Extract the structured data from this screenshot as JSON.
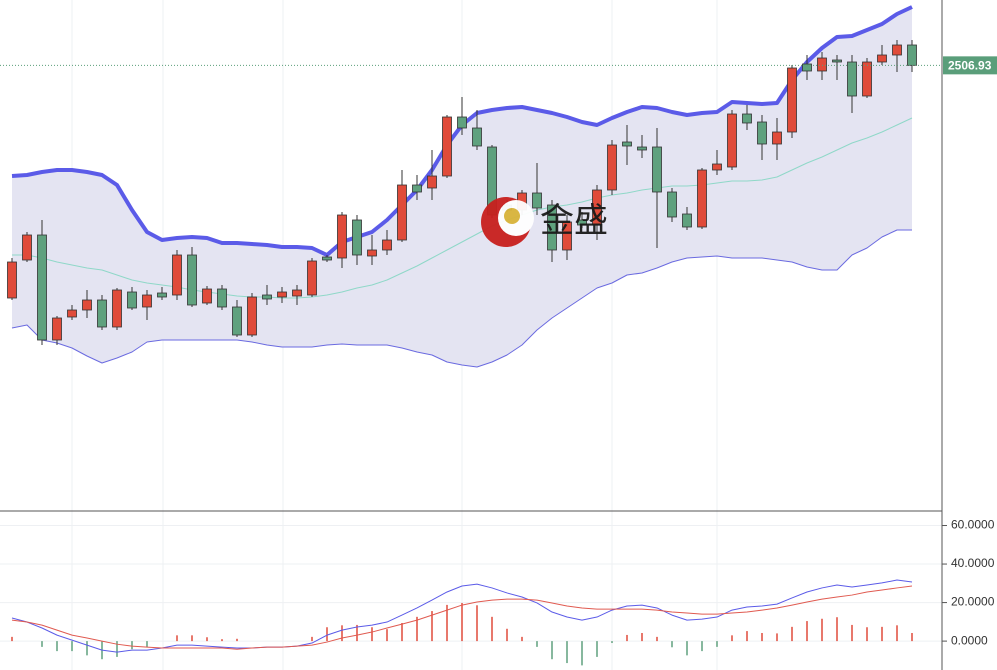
{
  "chart_data": [
    {
      "type": "candlestick",
      "watermark": "金盛",
      "current_price": 2506.93,
      "current_price_color": "#5a9e7a",
      "ylim": [
        2418,
        2520
      ],
      "up_color": "#e04b3a",
      "down_color": "#5fa17e",
      "open": [
        2460.4,
        2468,
        2473,
        2452,
        2456.6,
        2458,
        2460,
        2454.6,
        2461.6,
        2458.6,
        2461.4,
        2461,
        2469,
        2459.4,
        2462.2,
        2458.6,
        2453,
        2461,
        2460.6,
        2460.8,
        2461,
        2468.6,
        2468.4,
        2476,
        2468.8,
        2470,
        2472,
        2483,
        2482.4,
        2484.8,
        2496.6,
        2494.4,
        2490.6,
        2479,
        2478,
        2481.4,
        2479,
        2470,
        2476,
        2475,
        2482,
        2491.6,
        2490.6,
        2490.6,
        2481.6,
        2477.2,
        2474.6,
        2486,
        2486.6,
        2497.2,
        2495.6,
        2491.2,
        2493.6,
        2507.2,
        2505.8,
        2508,
        2507.6,
        2500.8,
        2507.6,
        2509,
        2511
      ],
      "high": [
        2468.4,
        2473.6,
        2476,
        2456.8,
        2459,
        2462,
        2461,
        2462.4,
        2462.6,
        2462,
        2462.6,
        2470,
        2470.6,
        2462.8,
        2463,
        2460,
        2461.4,
        2463,
        2462.6,
        2463,
        2468.4,
        2469,
        2477.6,
        2477,
        2473,
        2474,
        2486,
        2485,
        2490,
        2497,
        2500.6,
        2498,
        2491,
        2480,
        2482,
        2487.4,
        2480,
        2477,
        2477.6,
        2483,
        2492,
        2495,
        2493,
        2494.4,
        2482.4,
        2478.6,
        2486.4,
        2490,
        2498,
        2499,
        2497,
        2496.4,
        2507,
        2509,
        2509.6,
        2509,
        2509,
        2508.4,
        2511,
        2512,
        2512
      ],
      "low": [
        2460,
        2467.6,
        2451,
        2451,
        2456,
        2456.4,
        2454,
        2454,
        2458,
        2456,
        2460,
        2460,
        2458.6,
        2459,
        2458,
        2452.6,
        2452.6,
        2459,
        2459.4,
        2459,
        2460.6,
        2467.6,
        2466.4,
        2467,
        2467,
        2469,
        2471.6,
        2480,
        2480,
        2484.4,
        2493,
        2490,
        2476.4,
        2477.6,
        2477,
        2477,
        2467.6,
        2468,
        2474.4,
        2472,
        2481,
        2487,
        2488.4,
        2470.4,
        2475.6,
        2474,
        2474.2,
        2485,
        2486,
        2494,
        2488,
        2488,
        2492.4,
        2504,
        2504,
        2504,
        2497.4,
        2500.4,
        2507,
        2505.6,
        2505.6
      ],
      "close": [
        2467.6,
        2473,
        2452,
        2456.4,
        2458,
        2460,
        2454.6,
        2462,
        2458.4,
        2461,
        2460.6,
        2469,
        2459,
        2462.2,
        2458.6,
        2453,
        2460.6,
        2460.2,
        2461.6,
        2462,
        2467.8,
        2468,
        2477,
        2469,
        2470,
        2472,
        2483,
        2481.6,
        2484.8,
        2496.6,
        2494.4,
        2490.8,
        2477,
        2478,
        2481.4,
        2478.4,
        2470,
        2475.6,
        2475,
        2482,
        2491,
        2490.8,
        2490,
        2481.6,
        2476.6,
        2474.6,
        2486,
        2487.2,
        2497.2,
        2495.4,
        2491.2,
        2493.6,
        2506.4,
        2505.8,
        2508.4,
        2507.6,
        2500.8,
        2507.6,
        2509,
        2511,
        2506.93
      ],
      "band_fill": "#e4e4f2",
      "series": [
        {
          "color": "#5b5be8",
          "width": 4,
          "values": [
            2484.8,
            2485,
            2485.6,
            2486,
            2486,
            2485.6,
            2485,
            2483,
            2478,
            2473.6,
            2472,
            2472.4,
            2472.6,
            2472.4,
            2471.4,
            2471.4,
            2471.2,
            2471,
            2470.6,
            2470.6,
            2470.4,
            2469,
            2471.6,
            2472.6,
            2473.6,
            2476,
            2479,
            2482,
            2486,
            2491,
            2495,
            2497.4,
            2498,
            2498.4,
            2498.6,
            2498,
            2497.4,
            2496.6,
            2495.6,
            2495,
            2496.4,
            2497.6,
            2498.6,
            2498.4,
            2497.6,
            2497,
            2497.4,
            2497.6,
            2499.6,
            2499.4,
            2499.2,
            2499.4,
            2504,
            2507.6,
            2510.4,
            2512.6,
            2512.8,
            2514,
            2515.2,
            2517.2,
            2518.6
          ]
        },
        {
          "color": "#8fd8c8",
          "width": 1,
          "values": [
            2469,
            2469,
            2468.4,
            2467.6,
            2467,
            2466.4,
            2466,
            2465,
            2464,
            2463.4,
            2463,
            2462.6,
            2462,
            2461.6,
            2461.2,
            2460.8,
            2460.6,
            2460.6,
            2460.4,
            2460.4,
            2460.6,
            2461,
            2461.6,
            2462.4,
            2463,
            2464,
            2465.4,
            2466.8,
            2468.4,
            2470,
            2471.6,
            2473.2,
            2474.8,
            2476,
            2477,
            2478,
            2478.6,
            2479,
            2479.6,
            2480.4,
            2481,
            2481.4,
            2482,
            2482.4,
            2482.8,
            2482.8,
            2483,
            2483.4,
            2483.8,
            2483.8,
            2484,
            2484.6,
            2486,
            2487.4,
            2488.6,
            2490,
            2491.4,
            2492.4,
            2493.6,
            2495,
            2496.4
          ]
        },
        {
          "color": "#6a6ae0",
          "width": 1,
          "values": [
            2454.4,
            2455,
            2452,
            2451.4,
            2450.4,
            2448.8,
            2447.4,
            2448.4,
            2449.6,
            2451.6,
            2452,
            2452,
            2452,
            2452,
            2452,
            2452,
            2451.6,
            2451,
            2450.6,
            2450.6,
            2450.6,
            2451,
            2451.2,
            2451,
            2451,
            2451,
            2450.4,
            2449.6,
            2449,
            2447.6,
            2447,
            2446.6,
            2447.6,
            2449,
            2451,
            2454,
            2456.4,
            2458.4,
            2460.4,
            2462.4,
            2463.4,
            2465,
            2465.4,
            2466.4,
            2467.6,
            2468.4,
            2468.6,
            2468.8,
            2468.4,
            2468.4,
            2468.4,
            2468,
            2467.6,
            2466.6,
            2466,
            2466,
            2469,
            2470.4,
            2472.6,
            2474,
            2474
          ]
        }
      ]
    },
    {
      "type": "macd",
      "ylim": [
        -15,
        66.5
      ],
      "yticks": [
        {
          "value": 60,
          "label": "60.0000"
        },
        {
          "value": 40,
          "label": "40.0000"
        },
        {
          "value": 20,
          "label": "20.0000"
        },
        {
          "value": 0,
          "label": "0.0000"
        }
      ],
      "grid": true,
      "up_color": "#e04b3a",
      "down_color": "#5fa17e",
      "histogram": [
        2.2,
        0,
        -3,
        -5.2,
        -5.2,
        -7.4,
        -9.4,
        -8.2,
        -4.2,
        -3.2,
        0,
        3,
        3,
        2,
        1,
        1.2,
        0,
        0,
        0,
        0,
        2.2,
        7.2,
        8.2,
        8.4,
        7.2,
        6.2,
        9.4,
        12.6,
        15.6,
        18.8,
        19.8,
        18.6,
        12.6,
        6.4,
        2.2,
        -3,
        -9.4,
        -11.4,
        -12.6,
        -8.2,
        -1,
        3.2,
        4.2,
        2.2,
        -3.2,
        -7.4,
        -5.2,
        -3,
        3,
        5.2,
        4.2,
        4,
        7.4,
        10.4,
        11.6,
        12.4,
        8.4,
        7.2,
        7.4,
        8.2,
        4.2
      ],
      "series": [
        {
          "color": "#5b5be8",
          "values": [
            12,
            9.9,
            6.8,
            3.1,
            0.5,
            -2.1,
            -4.7,
            -5.7,
            -4.7,
            -4.7,
            -3.6,
            -2.1,
            -2.1,
            -2.6,
            -3.1,
            -3.6,
            -3.6,
            -3.1,
            -3.1,
            -2.6,
            -1,
            3.1,
            5.7,
            7.3,
            8.3,
            9.9,
            13.5,
            17.2,
            21.3,
            25.5,
            28.6,
            29.6,
            27.6,
            25,
            22.9,
            19.8,
            15.1,
            12.5,
            10.9,
            12.5,
            16.1,
            18.2,
            18.7,
            17.2,
            13.5,
            10.9,
            11.4,
            12.5,
            16.1,
            17.7,
            18.2,
            19.2,
            22.4,
            25.5,
            27.6,
            29.1,
            28.1,
            29.1,
            30.2,
            31.7,
            30.7
          ]
        },
        {
          "color": "#e05a50",
          "values": [
            10.9,
            9.9,
            8.3,
            5.7,
            3.1,
            1.6,
            0,
            -1.6,
            -2.6,
            -3.1,
            -3.6,
            -3.6,
            -3.6,
            -3.6,
            -3.6,
            -4.2,
            -3.6,
            -3.1,
            -3.1,
            -2.6,
            -2.1,
            -0.5,
            1.6,
            3.1,
            4.7,
            6.8,
            8.8,
            10.9,
            13.5,
            16.1,
            18.7,
            20.3,
            21.3,
            21.8,
            21.8,
            21.3,
            19.8,
            18.2,
            17.2,
            16.6,
            16.6,
            16.6,
            16.6,
            16.1,
            15.1,
            14.6,
            14,
            14,
            14.6,
            15.1,
            16.1,
            17.2,
            18.7,
            20.3,
            21.8,
            22.9,
            23.9,
            25.5,
            26.5,
            27.6,
            28.6
          ]
        }
      ]
    }
  ]
}
